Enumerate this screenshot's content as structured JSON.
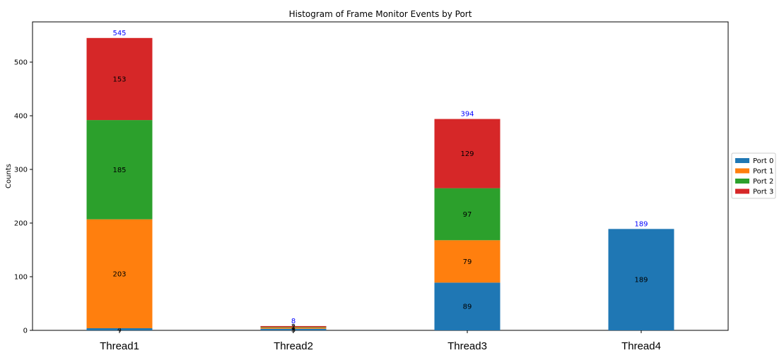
{
  "chart_data": {
    "type": "bar",
    "stacked": true,
    "title": "Histogram of Frame Monitor Events by Port",
    "xlabel": "",
    "ylabel": "Counts",
    "categories": [
      "Thread1",
      "Thread2",
      "Thread3",
      "Thread4"
    ],
    "ylim": [
      0,
      575
    ],
    "yticks": [
      0,
      100,
      200,
      300,
      400,
      500
    ],
    "series": [
      {
        "name": "Port 0",
        "color": "#1f77b4",
        "values": [
          4,
          3,
          89,
          189
        ]
      },
      {
        "name": "Port 1",
        "color": "#ff7f0e",
        "values": [
          203,
          2,
          79,
          0
        ]
      },
      {
        "name": "Port 2",
        "color": "#2ca02c",
        "values": [
          185,
          1,
          97,
          0
        ]
      },
      {
        "name": "Port 3",
        "color": "#d62728",
        "values": [
          153,
          2,
          129,
          0
        ]
      }
    ],
    "totals": [
      545,
      8,
      394,
      189
    ],
    "legend": "outside-right"
  }
}
